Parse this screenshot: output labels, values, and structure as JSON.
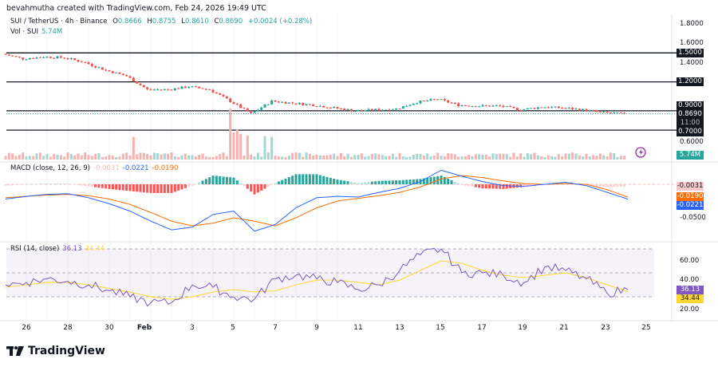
{
  "credit": "bevahmutha created with TradingView.com, Feb 24, 2026 19:49 UTC",
  "symbol": {
    "title": "SUI / TetherUS · 4h · Binance",
    "o_label": "O",
    "o": "0.8666",
    "h_label": "H",
    "h": "0.8755",
    "l_label": "L",
    "l": "0.8610",
    "c_label": "C",
    "c": "0.8690",
    "change": "+0.0024 (+0.28%)"
  },
  "volume": {
    "label": "Vol · SUI",
    "value": "5.74M"
  },
  "macd": {
    "label": "MACD (close, 12, 26, 9)",
    "hist": "-0.0031",
    "macd": "-0.0221",
    "signal": "-0.0190"
  },
  "rsi": {
    "label": "RSI (14, close)",
    "rsi": "36.13",
    "ma": "34.44"
  },
  "price_axis": [
    "1.8000",
    "1.6000",
    "1.4000",
    "0.6000"
  ],
  "levels": [
    "1.5000",
    "1.2000",
    "0.9000",
    "0.7000"
  ],
  "last_price": "0.8690",
  "countdown": "11:00",
  "macd_axis": [
    "-0.0500"
  ],
  "rsi_axis": [
    "60.00",
    "40.00",
    "20.00"
  ],
  "x_labels": [
    "26",
    "28",
    "30",
    "Feb",
    "3",
    "5",
    "7",
    "9",
    "11",
    "13",
    "15",
    "17",
    "19",
    "21",
    "23",
    "25"
  ],
  "logo": "TradingView",
  "colors": {
    "up": "#26a69a",
    "down": "#ef5350",
    "macd": "#2962ff",
    "signal": "#ff6d00",
    "rsi": "#7e57c2",
    "rsi_ma": "#fdd835"
  },
  "chart_data": [
    {
      "type": "candlestick",
      "title": "SUI / TetherUS · 4h · Binance",
      "dates": [
        "Jan 25",
        "Jan 26",
        "Jan 27",
        "Jan 28",
        "Jan 29",
        "Jan 30",
        "Jan 31",
        "Feb 1",
        "Feb 2",
        "Feb 3",
        "Feb 4",
        "Feb 5",
        "Feb 6",
        "Feb 7",
        "Feb 8",
        "Feb 9",
        "Feb 10",
        "Feb 11",
        "Feb 12",
        "Feb 13",
        "Feb 14",
        "Feb 15",
        "Feb 16",
        "Feb 17",
        "Feb 18",
        "Feb 19",
        "Feb 20",
        "Feb 21",
        "Feb 22",
        "Feb 23",
        "Feb 24"
      ],
      "close": [
        1.49,
        1.44,
        1.46,
        1.45,
        1.4,
        1.32,
        1.26,
        1.12,
        1.12,
        1.15,
        1.12,
        1.0,
        0.87,
        1.0,
        0.98,
        0.96,
        0.93,
        0.9,
        0.91,
        0.92,
        0.99,
        1.02,
        0.96,
        0.95,
        0.95,
        0.91,
        0.94,
        0.93,
        0.91,
        0.88,
        0.869
      ],
      "horizontal_levels": [
        1.5,
        1.2,
        0.9,
        0.7
      ],
      "ylim": [
        0.55,
        1.85
      ]
    },
    {
      "type": "line",
      "title": "MACD (close, 12, 26, 9)",
      "series": [
        {
          "name": "MACD",
          "values": [
            -0.022,
            -0.018,
            -0.015,
            -0.014,
            -0.02,
            -0.029,
            -0.04,
            -0.055,
            -0.068,
            -0.064,
            -0.045,
            -0.04,
            -0.07,
            -0.06,
            -0.035,
            -0.02,
            -0.018,
            -0.019,
            -0.012,
            -0.006,
            0.004,
            0.021,
            0.012,
            0.004,
            -0.002,
            -0.003,
            0.0,
            0.003,
            -0.002,
            -0.012,
            -0.0221
          ]
        },
        {
          "name": "Signal",
          "values": [
            -0.02,
            -0.018,
            -0.016,
            -0.015,
            -0.017,
            -0.022,
            -0.03,
            -0.042,
            -0.055,
            -0.062,
            -0.058,
            -0.05,
            -0.055,
            -0.062,
            -0.05,
            -0.035,
            -0.025,
            -0.021,
            -0.017,
            -0.012,
            -0.004,
            0.008,
            0.013,
            0.01,
            0.005,
            0.001,
            0.0,
            0.001,
            0.0,
            -0.008,
            -0.019
          ]
        }
      ]
    },
    {
      "type": "line",
      "title": "RSI (14, close)",
      "ylim": [
        15,
        75
      ],
      "bands": [
        70,
        50,
        30
      ],
      "series": [
        {
          "name": "RSI",
          "values": [
            40,
            42,
            45,
            43,
            40,
            35,
            30,
            25,
            25,
            40,
            38,
            30,
            28,
            45,
            48,
            45,
            42,
            36,
            40,
            52,
            65,
            70,
            50,
            50,
            48,
            42,
            55,
            52,
            45,
            33,
            36.13
          ]
        },
        {
          "name": "RSI MA",
          "values": [
            38,
            40,
            42,
            42,
            40,
            37,
            34,
            30,
            28,
            30,
            34,
            36,
            34,
            35,
            40,
            44,
            44,
            42,
            40,
            44,
            52,
            60,
            58,
            52,
            48,
            46,
            48,
            50,
            46,
            40,
            34.44
          ]
        }
      ]
    }
  ]
}
